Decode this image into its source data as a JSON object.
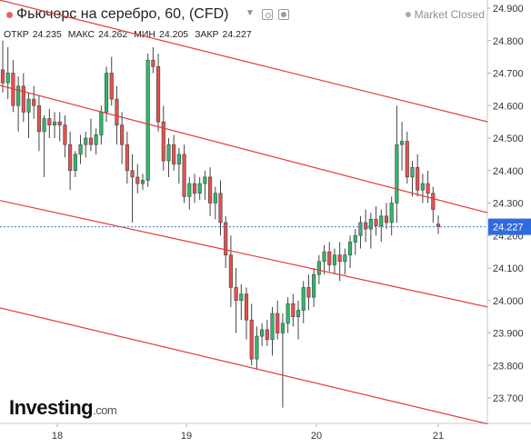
{
  "title": "Фьючерс на серебро, 60, (CFD)",
  "market_status": "Market Closed",
  "ohlc": {
    "open_label": "ОТКР",
    "open": "24.235",
    "high_label": "МАКС",
    "high": "24.262",
    "low_label": "МИН",
    "low": "24.205",
    "close_label": "ЗАКР",
    "close": "24.227"
  },
  "last_price_label": "24.227",
  "logo": {
    "main": "Investing",
    "suffix": ".com"
  },
  "colors": {
    "up": "#2fb86a",
    "down": "#e94f4f",
    "channel": "#e23a3a",
    "price_line": "#4a6fd0",
    "price_tag": "#2f6be0"
  },
  "chart_data": {
    "type": "candlestick",
    "title": "Фьючерс на серебро, 60, (CFD)",
    "xlabel": "",
    "ylabel": "",
    "x_ticks": [
      "18",
      "19",
      "20",
      "21"
    ],
    "y_ticks": [
      "24.900",
      "24.800",
      "24.700",
      "24.600",
      "24.500",
      "24.400",
      "24.300",
      "24.200",
      "24.100",
      "24.000",
      "23.900",
      "23.800",
      "23.700"
    ],
    "ylim": [
      23.62,
      24.93
    ],
    "grid": false,
    "last_price": 24.227,
    "ohlc_series": [
      [
        24.71,
        24.8,
        24.64,
        24.67
      ],
      [
        24.67,
        24.78,
        24.62,
        24.7
      ],
      [
        24.7,
        24.74,
        24.58,
        24.6
      ],
      [
        24.6,
        24.69,
        24.52,
        24.66
      ],
      [
        24.66,
        24.7,
        24.55,
        24.58
      ],
      [
        24.58,
        24.64,
        24.5,
        24.62
      ],
      [
        24.62,
        24.66,
        24.56,
        24.6
      ],
      [
        24.6,
        24.63,
        24.46,
        24.52
      ],
      [
        24.52,
        24.57,
        24.38,
        24.56
      ],
      [
        24.56,
        24.59,
        24.5,
        24.54
      ],
      [
        24.54,
        24.58,
        24.5,
        24.55
      ],
      [
        24.55,
        24.58,
        24.49,
        24.54
      ],
      [
        24.54,
        24.57,
        24.44,
        24.48
      ],
      [
        24.48,
        24.52,
        24.34,
        24.4
      ],
      [
        24.4,
        24.46,
        24.38,
        24.45
      ],
      [
        24.45,
        24.51,
        24.42,
        24.48
      ],
      [
        24.48,
        24.52,
        24.44,
        24.5
      ],
      [
        24.5,
        24.56,
        24.46,
        24.48
      ],
      [
        24.48,
        24.53,
        24.45,
        24.51
      ],
      [
        24.51,
        24.6,
        24.48,
        24.58
      ],
      [
        24.58,
        24.72,
        24.55,
        24.7
      ],
      [
        24.7,
        24.75,
        24.6,
        24.62
      ],
      [
        24.62,
        24.66,
        24.48,
        24.54
      ],
      [
        24.54,
        24.58,
        24.42,
        24.48
      ],
      [
        24.48,
        24.52,
        24.36,
        24.4
      ],
      [
        24.4,
        24.45,
        24.24,
        24.38
      ],
      [
        24.38,
        24.42,
        24.33,
        24.36
      ],
      [
        24.36,
        24.39,
        24.34,
        24.37
      ],
      [
        24.37,
        24.76,
        24.35,
        24.74
      ],
      [
        24.74,
        24.78,
        24.7,
        24.72
      ],
      [
        24.72,
        24.76,
        24.52,
        24.55
      ],
      [
        24.55,
        24.6,
        24.4,
        24.43
      ],
      [
        24.43,
        24.5,
        24.38,
        24.48
      ],
      [
        24.48,
        24.51,
        24.4,
        24.42
      ],
      [
        24.42,
        24.47,
        24.36,
        24.45
      ],
      [
        24.45,
        24.48,
        24.3,
        24.32
      ],
      [
        24.32,
        24.38,
        24.28,
        24.36
      ],
      [
        24.36,
        24.39,
        24.3,
        24.33
      ],
      [
        24.33,
        24.38,
        24.31,
        24.36
      ],
      [
        24.36,
        24.4,
        24.31,
        24.38
      ],
      [
        24.38,
        24.41,
        24.26,
        24.3
      ],
      [
        24.3,
        24.35,
        24.25,
        24.33
      ],
      [
        24.33,
        24.37,
        24.2,
        24.24
      ],
      [
        24.24,
        24.26,
        24.1,
        24.14
      ],
      [
        24.14,
        24.2,
        23.98,
        24.04
      ],
      [
        24.04,
        24.1,
        23.9,
        24.0
      ],
      [
        24.0,
        24.05,
        23.94,
        24.02
      ],
      [
        24.02,
        24.04,
        23.88,
        23.94
      ],
      [
        23.94,
        23.99,
        23.8,
        23.82
      ],
      [
        23.82,
        23.92,
        23.79,
        23.89
      ],
      [
        23.89,
        23.93,
        23.86,
        23.91
      ],
      [
        23.91,
        23.94,
        23.86,
        23.88
      ],
      [
        23.88,
        23.98,
        23.83,
        23.96
      ],
      [
        23.96,
        24.0,
        23.88,
        23.9
      ],
      [
        23.9,
        23.96,
        23.67,
        23.93
      ],
      [
        23.93,
        24.01,
        23.9,
        23.99
      ],
      [
        23.99,
        24.02,
        23.92,
        23.95
      ],
      [
        23.95,
        24.0,
        23.88,
        23.97
      ],
      [
        23.97,
        24.06,
        23.93,
        24.04
      ],
      [
        24.04,
        24.08,
        23.97,
        24.01
      ],
      [
        24.01,
        24.1,
        23.98,
        24.08
      ],
      [
        24.08,
        24.14,
        24.05,
        24.12
      ],
      [
        24.12,
        24.17,
        24.08,
        24.15
      ],
      [
        24.15,
        24.18,
        24.09,
        24.11
      ],
      [
        24.11,
        24.16,
        24.08,
        24.14
      ],
      [
        24.14,
        24.18,
        24.06,
        24.12
      ],
      [
        24.12,
        24.16,
        24.08,
        24.14
      ],
      [
        24.14,
        24.2,
        24.1,
        24.18
      ],
      [
        24.18,
        24.22,
        24.14,
        24.2
      ],
      [
        24.2,
        24.26,
        24.16,
        24.24
      ],
      [
        24.24,
        24.28,
        24.18,
        24.22
      ],
      [
        24.22,
        24.27,
        24.16,
        24.25
      ],
      [
        24.25,
        24.29,
        24.2,
        24.23
      ],
      [
        24.23,
        24.28,
        24.18,
        24.26
      ],
      [
        24.26,
        24.3,
        24.22,
        24.24
      ],
      [
        24.24,
        24.32,
        24.2,
        24.3
      ],
      [
        24.3,
        24.6,
        24.24,
        24.48
      ],
      [
        24.48,
        24.55,
        24.4,
        24.49
      ],
      [
        24.49,
        24.52,
        24.36,
        24.38
      ],
      [
        24.38,
        24.43,
        24.32,
        24.41
      ],
      [
        24.41,
        24.45,
        24.32,
        24.34
      ],
      [
        24.34,
        24.39,
        24.3,
        24.36
      ],
      [
        24.36,
        24.4,
        24.3,
        24.33
      ],
      [
        24.33,
        24.35,
        24.24,
        24.28
      ],
      [
        24.235,
        24.262,
        24.205,
        24.227
      ]
    ],
    "channel_lines": [
      {
        "from": [
          "17 00:00",
          24.98
        ],
        "to": [
          "21 08:00",
          24.55
        ]
      },
      {
        "from": [
          "17 00:00",
          24.72
        ],
        "to": [
          "21 08:00",
          24.27
        ]
      },
      {
        "from": [
          "17 10:00",
          24.32
        ],
        "to": [
          "21 08:00",
          23.98
        ]
      },
      {
        "from": [
          "17 00:00",
          24.03
        ],
        "to": [
          "21 08:00",
          23.62
        ]
      }
    ]
  }
}
